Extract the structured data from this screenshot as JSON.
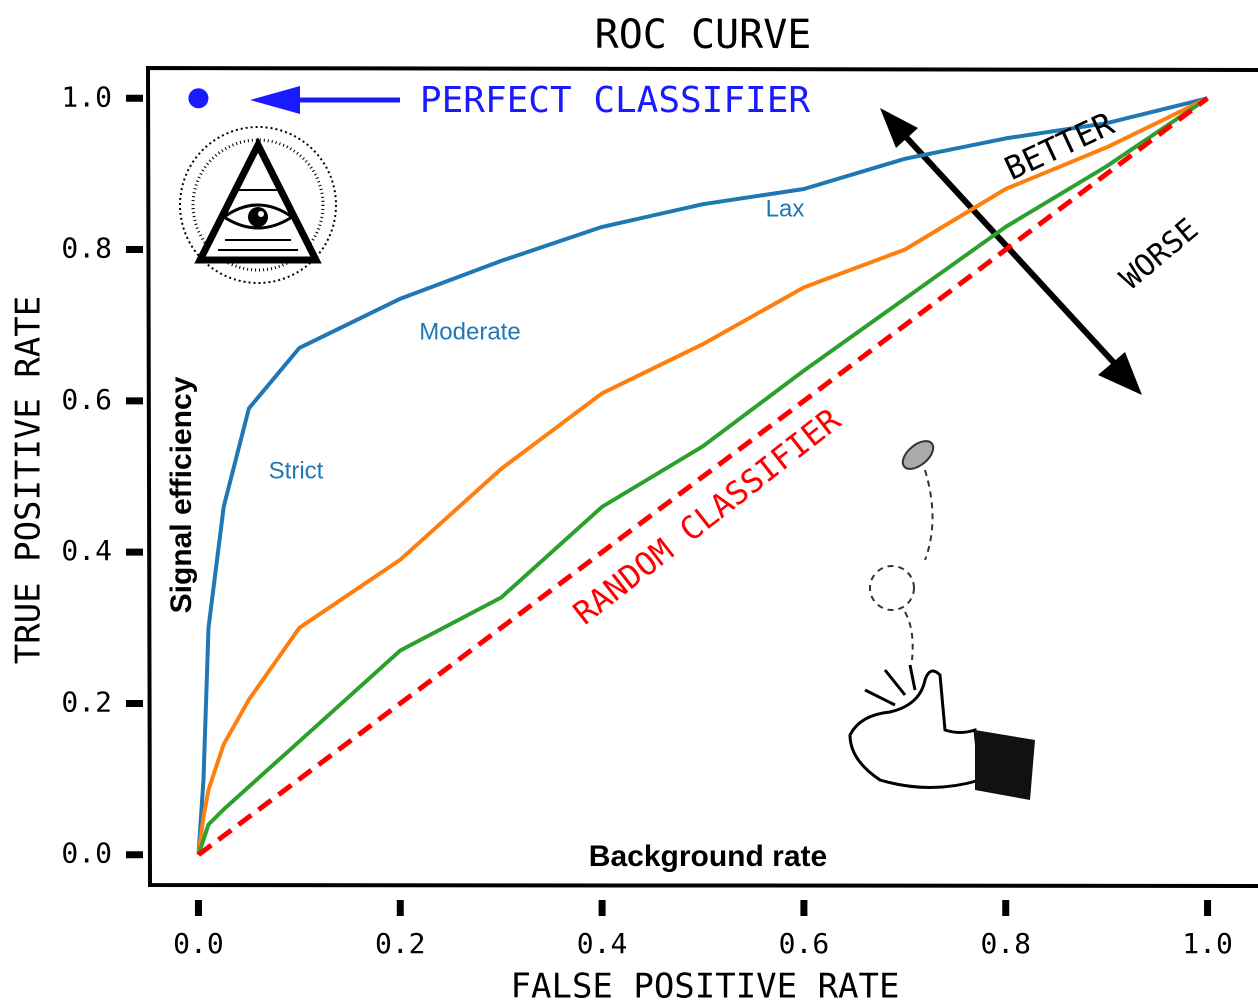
{
  "chart_data": {
    "type": "line",
    "title": "ROC CURVE",
    "x_label": "FALSE POSITIVE RATE",
    "y_label": "TRUE POSITIVE RATE",
    "annotations": [
      "PERFECT CLASSIFIER",
      "BETTER",
      "WORSE",
      "RANDOM CLASSIFIER",
      "Lax",
      "Moderate",
      "Strict",
      "Signal efficiency",
      "Background rate"
    ],
    "perfect_point": {
      "x": 0,
      "y": 1,
      "color": "#1a1aff"
    },
    "x": [
      0,
      0.005,
      0.01,
      0.025,
      0.05,
      0.1,
      0.2,
      0.3,
      0.4,
      0.5,
      0.6,
      0.7,
      0.8,
      0.9,
      1.0
    ],
    "series": [
      {
        "color": "#1f77b4",
        "values": [
          0,
          0.1,
          0.3,
          0.46,
          0.59,
          0.67,
          0.735,
          0.785,
          0.83,
          0.86,
          0.88,
          0.92,
          0.947,
          0.967,
          1.0
        ]
      },
      {
        "color": "#ff7f0e",
        "values": [
          0,
          0.05,
          0.086,
          0.146,
          0.205,
          0.3,
          0.39,
          0.51,
          0.61,
          0.675,
          0.75,
          0.8,
          0.88,
          0.935,
          1.0
        ]
      },
      {
        "color": "#2ca02c",
        "values": [
          0,
          0.02,
          0.04,
          0.06,
          0.09,
          0.15,
          0.27,
          0.34,
          0.46,
          0.54,
          0.64,
          0.735,
          0.83,
          0.91,
          1.0
        ]
      },
      {
        "color": "#ff0000",
        "linestyle": "dashed",
        "values": [
          0,
          0.005,
          0.01,
          0.025,
          0.05,
          0.1,
          0.2,
          0.3,
          0.4,
          0.5,
          0.6,
          0.7,
          0.8,
          0.9,
          1.0
        ]
      }
    ],
    "xlim": [
      -0.05,
      1.05
    ],
    "ylim": [
      -0.04,
      1.04
    ],
    "xticks": [
      {
        "value": 0,
        "label": "0.0"
      },
      {
        "value": 0.2,
        "label": "0.2"
      },
      {
        "value": 0.4,
        "label": "0.4"
      },
      {
        "value": 0.6,
        "label": "0.6"
      },
      {
        "value": 0.8,
        "label": "0.8"
      },
      {
        "value": 1,
        "label": "1.0"
      }
    ],
    "yticks": [
      {
        "value": 0,
        "label": "0.0"
      },
      {
        "value": 0.2,
        "label": "0.2"
      },
      {
        "value": 0.4,
        "label": "0.4"
      },
      {
        "value": 0.6,
        "label": "0.6"
      },
      {
        "value": 0.8,
        "label": "0.8"
      },
      {
        "value": 1,
        "label": "1.0"
      }
    ],
    "grid": false
  }
}
